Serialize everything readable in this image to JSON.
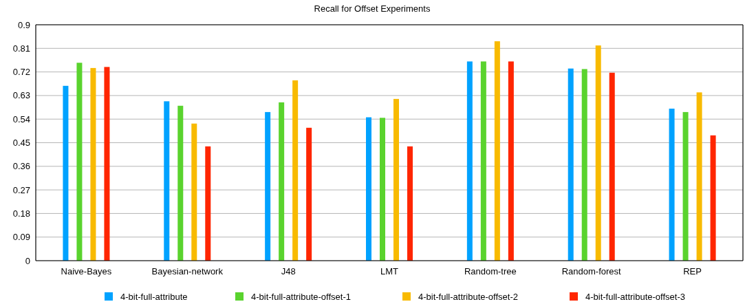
{
  "chart_data": {
    "type": "bar",
    "title": "Recall for Offset Experiments",
    "categories": [
      "Naive-Bayes",
      "Bayesian-network",
      "J48",
      "LMT",
      "Random-tree",
      "Random-forest",
      "REP"
    ],
    "series": [
      {
        "name": "4-bit-full-attribute",
        "color": "#00a2ff",
        "values": [
          0.667,
          0.608,
          0.567,
          0.547,
          0.76,
          0.733,
          0.58
        ]
      },
      {
        "name": "4-bit-full-attribute-offset-1",
        "color": "#5ad32e",
        "values": [
          0.755,
          0.591,
          0.604,
          0.545,
          0.76,
          0.731,
          0.567
        ]
      },
      {
        "name": "4-bit-full-attribute-offset-2",
        "color": "#f8ba00",
        "values": [
          0.735,
          0.523,
          0.688,
          0.617,
          0.837,
          0.821,
          0.642
        ]
      },
      {
        "name": "4-bit-full-attribute-offset-3",
        "color": "#ff2600",
        "values": [
          0.739,
          0.436,
          0.507,
          0.436,
          0.76,
          0.717,
          0.478
        ]
      }
    ],
    "ylim": [
      0,
      0.9
    ],
    "yticks": [
      0,
      0.09,
      0.18,
      0.27,
      0.36,
      0.45,
      0.54,
      0.63,
      0.72,
      0.81,
      0.9
    ],
    "grid": "y",
    "legend": "bottom"
  }
}
